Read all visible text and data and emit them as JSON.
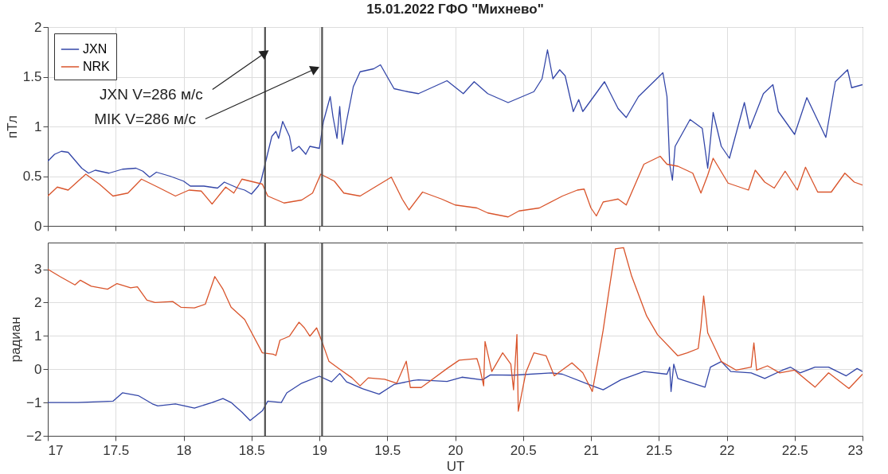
{
  "chart_data": [
    {
      "type": "line",
      "title": "15.01.2022  ГФО \"Михнево\"",
      "ylabel": "пТл",
      "xlim": [
        17,
        23
      ],
      "xticks": [
        17,
        17.5,
        18,
        18.5,
        19,
        19.5,
        20,
        20.5,
        21,
        21.5,
        22,
        22.5,
        23
      ],
      "ylim": [
        0,
        2
      ],
      "yticks": [
        0,
        0.5,
        1,
        1.5,
        2
      ],
      "grid": true,
      "legend": "top left",
      "tick_labels": "y",
      "ref_lines": [
        {
          "axis": "x",
          "value": 18.6,
          "color": "#505050"
        },
        {
          "axis": "x",
          "value": 19.02,
          "color": "#505050"
        }
      ],
      "annotations": [
        {
          "text": "JXN   V=286 м/с",
          "x": 18.6,
          "y": 1.74
        },
        {
          "text": "MIK  V=286 м/с",
          "x": 18.97,
          "y": 1.58
        }
      ],
      "series": [
        {
          "name": "JXN",
          "color": "#3346a8",
          "x": [
            17.0,
            17.05,
            17.1,
            17.15,
            17.2,
            17.25,
            17.3,
            17.35,
            17.45,
            17.55,
            17.65,
            17.7,
            17.75,
            17.8,
            17.9,
            18.0,
            18.05,
            18.15,
            18.25,
            18.3,
            18.4,
            18.45,
            18.5,
            18.55,
            18.57,
            18.6,
            18.65,
            18.68,
            18.7,
            18.73,
            18.78,
            18.8,
            18.85,
            18.9,
            18.93,
            19.0,
            19.03,
            19.08,
            19.1,
            19.13,
            19.15,
            19.17,
            19.2,
            19.25,
            19.3,
            19.4,
            19.45,
            19.5,
            19.55,
            19.65,
            19.73,
            19.94,
            20.06,
            20.14,
            20.24,
            20.39,
            20.58,
            20.64,
            20.68,
            20.72,
            20.77,
            20.81,
            20.87,
            20.91,
            20.94,
            21.1,
            21.2,
            21.26,
            21.35,
            21.53,
            21.56,
            21.58,
            21.6,
            21.62,
            21.73,
            21.82,
            21.86,
            21.9,
            21.96,
            22.02,
            22.13,
            22.17,
            22.27,
            22.34,
            22.38,
            22.5,
            22.59,
            22.73,
            22.8,
            22.89,
            22.92,
            23.0
          ],
          "values": [
            0.65,
            0.72,
            0.75,
            0.74,
            0.66,
            0.58,
            0.53,
            0.56,
            0.53,
            0.57,
            0.58,
            0.55,
            0.49,
            0.54,
            0.5,
            0.45,
            0.4,
            0.4,
            0.38,
            0.44,
            0.38,
            0.36,
            0.32,
            0.4,
            0.45,
            0.62,
            0.9,
            0.95,
            0.88,
            1.05,
            0.9,
            0.75,
            0.8,
            0.72,
            0.8,
            0.78,
            1.05,
            1.3,
            1.1,
            0.88,
            1.2,
            0.82,
            1.05,
            1.4,
            1.55,
            1.58,
            1.62,
            1.5,
            1.38,
            1.35,
            1.33,
            1.46,
            1.33,
            1.45,
            1.33,
            1.24,
            1.35,
            1.48,
            1.77,
            1.48,
            1.57,
            1.51,
            1.15,
            1.27,
            1.15,
            1.45,
            1.18,
            1.09,
            1.3,
            1.54,
            1.3,
            0.62,
            0.46,
            0.8,
            1.07,
            0.98,
            0.58,
            1.14,
            0.8,
            0.68,
            1.24,
            0.98,
            1.33,
            1.42,
            1.15,
            0.92,
            1.29,
            0.89,
            1.45,
            1.57,
            1.39,
            1.42
          ]
        },
        {
          "name": "NRK",
          "color": "#d9542b",
          "x": [
            17.0,
            17.07,
            17.15,
            17.28,
            17.38,
            17.48,
            17.59,
            17.69,
            17.81,
            17.94,
            18.04,
            18.13,
            18.21,
            18.31,
            18.37,
            18.43,
            18.58,
            18.62,
            18.74,
            18.87,
            18.95,
            19.01,
            19.11,
            19.18,
            19.3,
            19.53,
            19.61,
            19.66,
            19.76,
            19.9,
            20.0,
            20.16,
            20.24,
            20.39,
            20.47,
            20.62,
            20.79,
            20.9,
            20.95,
            21.0,
            21.04,
            21.09,
            21.2,
            21.26,
            21.39,
            21.51,
            21.56,
            21.64,
            21.75,
            21.81,
            21.86,
            21.9,
            22.01,
            22.16,
            22.21,
            22.28,
            22.35,
            22.43,
            22.52,
            22.58,
            22.67,
            22.77,
            22.87,
            22.94,
            23.0
          ],
          "values": [
            0.3,
            0.39,
            0.36,
            0.52,
            0.42,
            0.3,
            0.33,
            0.47,
            0.39,
            0.3,
            0.36,
            0.35,
            0.22,
            0.39,
            0.33,
            0.47,
            0.42,
            0.3,
            0.23,
            0.26,
            0.33,
            0.52,
            0.45,
            0.33,
            0.3,
            0.49,
            0.27,
            0.16,
            0.34,
            0.27,
            0.21,
            0.18,
            0.13,
            0.09,
            0.15,
            0.18,
            0.3,
            0.36,
            0.37,
            0.18,
            0.1,
            0.24,
            0.27,
            0.21,
            0.62,
            0.7,
            0.62,
            0.6,
            0.53,
            0.33,
            0.51,
            0.68,
            0.43,
            0.36,
            0.56,
            0.44,
            0.38,
            0.55,
            0.36,
            0.59,
            0.34,
            0.34,
            0.53,
            0.44,
            0.41
          ]
        }
      ]
    },
    {
      "type": "line",
      "ylabel": "радиан",
      "xlabel": "UT",
      "xlim": [
        17,
        23
      ],
      "xticks": [
        17,
        17.5,
        18,
        18.5,
        19,
        19.5,
        20,
        20.5,
        21,
        21.5,
        22,
        22.5,
        23
      ],
      "ylim": [
        -2,
        3.8
      ],
      "yticks": [
        -2,
        -1,
        0,
        1,
        2,
        3
      ],
      "grid": true,
      "ref_lines": [
        {
          "axis": "x",
          "value": 18.6,
          "color": "#505050"
        },
        {
          "axis": "x",
          "value": 19.02,
          "color": "#505050"
        }
      ],
      "series": [
        {
          "color": "#3346a8",
          "x": [
            17.0,
            17.22,
            17.48,
            17.55,
            17.67,
            17.77,
            17.81,
            17.94,
            18.08,
            18.21,
            18.29,
            18.35,
            18.43,
            18.49,
            18.58,
            18.62,
            18.72,
            18.76,
            18.87,
            19.0,
            19.09,
            19.15,
            19.2,
            19.32,
            19.44,
            19.55,
            19.69,
            19.73,
            19.94,
            20.05,
            20.2,
            20.26,
            20.43,
            20.71,
            20.79,
            21.01,
            21.09,
            21.22,
            21.39,
            21.56,
            21.58,
            21.59,
            21.61,
            21.64,
            21.84,
            21.88,
            21.96,
            22.03,
            22.18,
            22.28,
            22.41,
            22.47,
            22.54,
            22.65,
            22.75,
            22.88,
            22.96,
            23.0
          ],
          "values": [
            -1.0,
            -1.0,
            -0.96,
            -0.71,
            -0.8,
            -1.04,
            -1.1,
            -1.04,
            -1.17,
            -1.0,
            -0.88,
            -1.0,
            -1.29,
            -1.54,
            -1.25,
            -0.96,
            -1.0,
            -0.71,
            -0.42,
            -0.21,
            -0.38,
            -0.13,
            -0.38,
            -0.59,
            -0.75,
            -0.46,
            -0.34,
            -0.32,
            -0.37,
            -0.24,
            -0.32,
            -0.17,
            -0.18,
            -0.11,
            -0.15,
            -0.5,
            -0.62,
            -0.32,
            -0.07,
            -0.15,
            0.06,
            -0.67,
            0.15,
            -0.28,
            -0.54,
            0.06,
            0.23,
            -0.07,
            -0.11,
            -0.28,
            -0.03,
            0.06,
            -0.11,
            0.06,
            0.06,
            -0.2,
            0.02,
            -0.07
          ]
        },
        {
          "color": "#d9542b",
          "x": [
            17.0,
            17.09,
            17.2,
            17.24,
            17.32,
            17.44,
            17.51,
            17.61,
            17.66,
            17.73,
            17.79,
            17.92,
            17.98,
            18.08,
            18.16,
            18.23,
            18.29,
            18.35,
            18.45,
            18.58,
            18.66,
            18.68,
            18.71,
            18.78,
            18.85,
            18.89,
            18.93,
            18.98,
            19.02,
            19.07,
            19.15,
            19.24,
            19.3,
            19.36,
            19.48,
            19.57,
            19.64,
            19.67,
            19.75,
            19.84,
            19.94,
            20.03,
            20.16,
            20.18,
            20.21,
            20.22,
            20.27,
            20.35,
            20.41,
            20.43,
            20.455,
            20.465,
            20.52,
            20.58,
            20.67,
            20.73,
            20.86,
            20.94,
            21.01,
            21.05,
            21.09,
            21.13,
            21.18,
            21.24,
            21.3,
            21.41,
            21.49,
            21.64,
            21.71,
            21.79,
            21.81,
            21.83,
            21.86,
            21.96,
            22.07,
            22.18,
            22.2,
            22.22,
            22.3,
            22.39,
            22.5,
            22.65,
            22.75,
            22.9,
            23.0
          ],
          "values": [
            3.0,
            2.78,
            2.53,
            2.67,
            2.49,
            2.4,
            2.57,
            2.44,
            2.47,
            2.07,
            2.0,
            2.03,
            1.86,
            1.84,
            1.95,
            2.78,
            2.4,
            1.86,
            1.49,
            0.49,
            0.45,
            0.41,
            0.87,
            0.99,
            1.41,
            1.24,
            0.99,
            1.24,
            0.82,
            0.24,
            0.0,
            -0.26,
            -0.5,
            -0.26,
            -0.3,
            -0.42,
            0.24,
            -0.55,
            -0.55,
            -0.28,
            0.02,
            0.27,
            0.32,
            0.06,
            -0.5,
            0.83,
            -0.07,
            0.49,
            0.15,
            -0.62,
            1.04,
            -1.26,
            -0.11,
            0.49,
            0.4,
            -0.2,
            0.19,
            -0.11,
            -0.67,
            0.23,
            1.17,
            2.28,
            3.61,
            3.65,
            2.79,
            1.6,
            1.04,
            0.4,
            0.49,
            0.62,
            1.26,
            2.2,
            1.09,
            0.23,
            -0.03,
            0.06,
            0.79,
            -0.03,
            0.1,
            -0.11,
            -0.03,
            -0.54,
            -0.11,
            -0.58,
            -0.15
          ]
        }
      ]
    }
  ]
}
